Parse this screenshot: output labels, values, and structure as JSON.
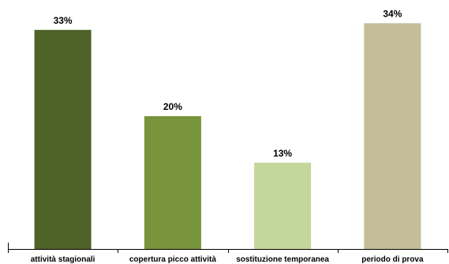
{
  "chart_data": {
    "type": "bar",
    "title": "",
    "xlabel": "",
    "ylabel": "",
    "categories": [
      "attività stagionali",
      "copertura picco attività",
      "sostituzione temporanea",
      "periodo di prova"
    ],
    "values": [
      33,
      20,
      13,
      34
    ],
    "value_labels": [
      "33%",
      "20%",
      "13%",
      "34%"
    ],
    "ylim": [
      0,
      35
    ],
    "grid": false,
    "legend": "none",
    "colors": [
      "#4f6228",
      "#77933c",
      "#c3d69b",
      "#c4bd97"
    ]
  }
}
